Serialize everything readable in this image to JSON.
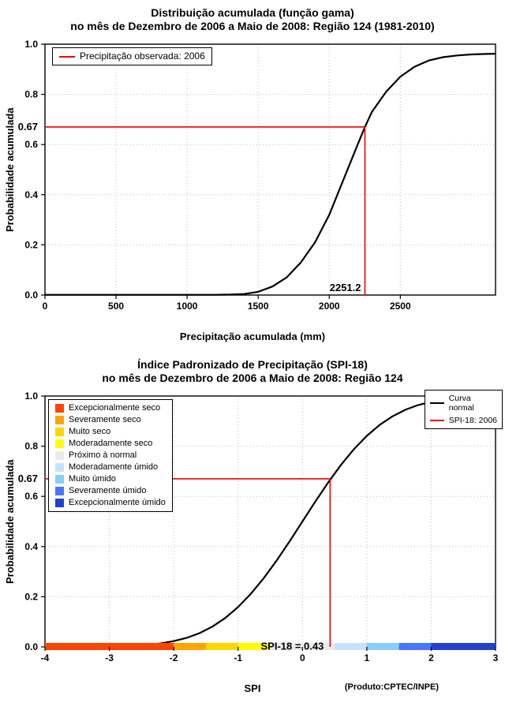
{
  "footer_note": "(Produto:CPTEC/INPE)",
  "colors": {
    "curve": "#000000",
    "reference_red": "#EE0000",
    "grid": "#BDBDBD"
  },
  "chart_data": [
    {
      "type": "line",
      "title": "Distribuição acumulada (função gama)",
      "subtitle": "no mês de Dezembro de 2006 a Maio de 2008: Região 124 (1981-2010)",
      "xlabel": "Precipitação acumulada (mm)",
      "ylabel": "Probabilidade acumulada",
      "xlim": [
        0,
        3170
      ],
      "ylim": [
        0,
        1
      ],
      "grid": true,
      "xticks": [
        0,
        500,
        1000,
        1500,
        2000,
        2500
      ],
      "xtick_labels": [
        "0",
        "500",
        "1000",
        "1500",
        "2000",
        "2500"
      ],
      "yticks": [
        0,
        0.2,
        0.4,
        0.6,
        0.8,
        1.0
      ],
      "ytick_labels": [
        "0.0",
        "0.2",
        "0.4",
        "0.6",
        "0.8",
        "1.0"
      ],
      "curve_color": "#000000",
      "ref_color": "#EE0000",
      "reference": {
        "prob": 0.67,
        "prob_label": "0.67",
        "value": 2251.2,
        "value_label": "2251.2"
      },
      "legend": [
        {
          "type": "line",
          "color": "#EE0000",
          "label": "Precipitação observada: 2006"
        }
      ],
      "series": [
        {
          "name": "Distribuição gama acumulada",
          "x": [
            0,
            200,
            400,
            600,
            800,
            1000,
            1100,
            1200,
            1300,
            1400,
            1500,
            1600,
            1700,
            1800,
            1900,
            2000,
            2100,
            2200,
            2251.2,
            2300,
            2400,
            2500,
            2600,
            2700,
            2800,
            2900,
            3000,
            3100,
            3170
          ],
          "y": [
            0.001,
            0.001,
            0.001,
            0.001,
            0.001,
            0.001,
            0.001,
            0.001,
            0.002,
            0.004,
            0.013,
            0.034,
            0.07,
            0.13,
            0.21,
            0.32,
            0.46,
            0.6,
            0.67,
            0.73,
            0.81,
            0.87,
            0.91,
            0.935,
            0.948,
            0.955,
            0.959,
            0.961,
            0.962
          ]
        }
      ]
    },
    {
      "type": "line",
      "title": "Índice Padronizado de Precipitação (SPI-18)",
      "subtitle": "no mês de Dezembro de 2006 a Maio de 2008: Região 124",
      "xlabel": "SPI",
      "ylabel": "Probabilidade acumulada",
      "xlim": [
        -4,
        3
      ],
      "ylim": [
        0,
        1
      ],
      "grid": true,
      "xticks": [
        -4,
        -3,
        -2,
        -1,
        0,
        1,
        2,
        3
      ],
      "xtick_labels": [
        "-4",
        "-3",
        "-2",
        "-1",
        "0",
        "1",
        "2",
        "3"
      ],
      "yticks": [
        0,
        0.2,
        0.4,
        0.6,
        0.8,
        1.0
      ],
      "ytick_labels": [
        "0.0",
        "0.2",
        "0.4",
        "0.6",
        "0.8",
        "1.0"
      ],
      "curve_color": "#000000",
      "ref_color": "#EE0000",
      "reference": {
        "prob": 0.67,
        "prob_label": "0.67",
        "value": 0.43,
        "value_label": "0.43"
      },
      "annotation": "SPI-18 = 0.43",
      "legend": [
        {
          "type": "line",
          "color": "#000000",
          "label": "Curva\nnormal"
        },
        {
          "type": "line",
          "color": "#EE0000",
          "label": "SPI-18: 2006"
        }
      ],
      "categories": [
        {
          "color": "#FF4500",
          "label": "Excepcionalmente seco"
        },
        {
          "color": "#FFA500",
          "label": "Severamente seco"
        },
        {
          "color": "#FFD700",
          "label": "Muito seco"
        },
        {
          "color": "#FFFF00",
          "label": "Moderadamente seco"
        },
        {
          "color": "#EBEBEB",
          "label": "Próximo à normal"
        },
        {
          "color": "#C6E2FF",
          "label": "Moderadamente úmido"
        },
        {
          "color": "#87CEFA",
          "label": "Muito úmido"
        },
        {
          "color": "#4876FF",
          "label": "Severamente úmido"
        },
        {
          "color": "#2441CD",
          "label": "Excepcionalmente úmido"
        }
      ],
      "band_edges": [
        -4,
        -2,
        -1.5,
        -1,
        -0.5,
        0.5,
        1,
        1.5,
        2,
        3
      ],
      "series": [
        {
          "name": "Curva normal",
          "x": [
            -4,
            -3.6,
            -3.2,
            -3,
            -2.8,
            -2.6,
            -2.4,
            -2.2,
            -2,
            -1.8,
            -1.6,
            -1.4,
            -1.2,
            -1,
            -0.8,
            -0.6,
            -0.4,
            -0.2,
            0,
            0.2,
            0.4,
            0.43,
            0.6,
            0.8,
            1,
            1.2,
            1.4,
            1.6,
            1.8,
            2,
            2.2,
            2.4,
            2.6,
            2.8,
            3
          ],
          "y": [
            0.0,
            0.0002,
            0.0006,
            0.0013,
            0.0026,
            0.0047,
            0.0082,
            0.0139,
            0.0228,
            0.0359,
            0.0548,
            0.0808,
            0.1151,
            0.1587,
            0.2119,
            0.2743,
            0.3446,
            0.4207,
            0.5,
            0.5793,
            0.6554,
            0.666,
            0.7257,
            0.7881,
            0.8413,
            0.8849,
            0.9192,
            0.9452,
            0.9641,
            0.9772,
            0.9861,
            0.9918,
            0.9953,
            0.9974,
            0.9987
          ]
        }
      ]
    }
  ]
}
